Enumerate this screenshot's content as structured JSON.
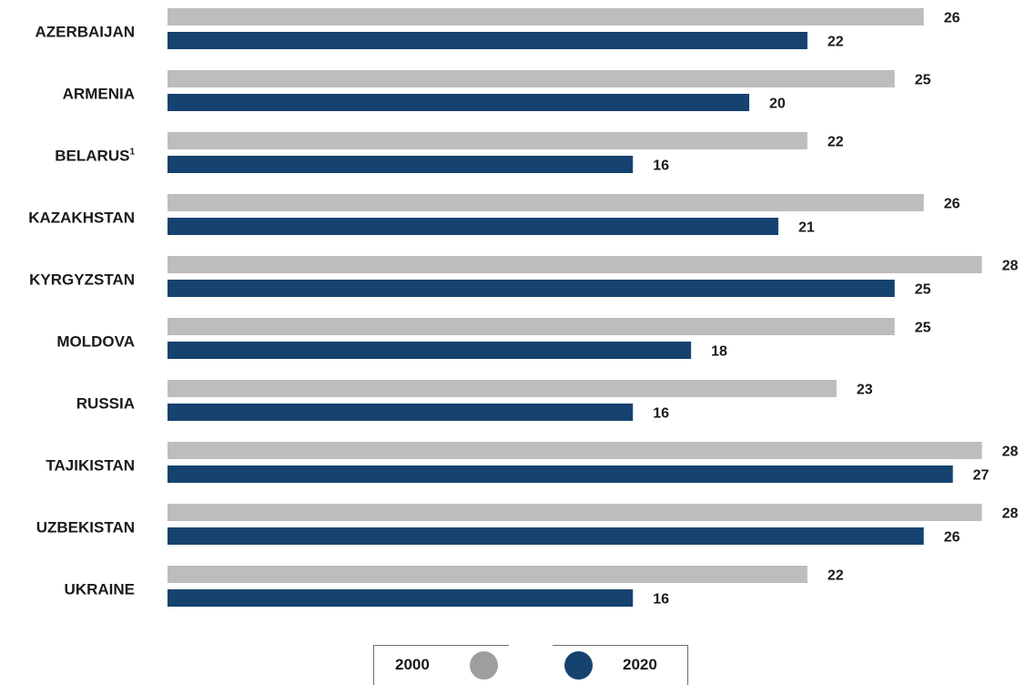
{
  "chart_data": {
    "type": "bar",
    "orientation": "horizontal",
    "categories": [
      "AZERBAIJAN",
      "ARMENIA",
      "BELARUS",
      "KAZAKHSTAN",
      "KYRGYZSTAN",
      "MOLDOVA",
      "RUSSIA",
      "TAJIKISTAN",
      "UZBEKISTAN",
      "UKRAINE"
    ],
    "category_footnotes": [
      "",
      "",
      "1",
      "",
      "",
      "",
      "",
      "",
      "",
      ""
    ],
    "series": [
      {
        "name": "2000",
        "color": "#bdbdbf",
        "values": [
          26,
          25,
          22,
          26,
          28,
          25,
          23,
          28,
          28,
          22
        ]
      },
      {
        "name": "2020",
        "color": "#16426f",
        "values": [
          22,
          20,
          16,
          21,
          25,
          18,
          16,
          27,
          26,
          16
        ]
      }
    ],
    "xlim": [
      0,
      28
    ],
    "grid": false,
    "legend_position": "bottom-center",
    "data_labels": true
  },
  "legend": {
    "items": [
      {
        "label": "2000",
        "color": "#9e9ea0"
      },
      {
        "label": "2020",
        "color": "#16426f"
      }
    ]
  }
}
